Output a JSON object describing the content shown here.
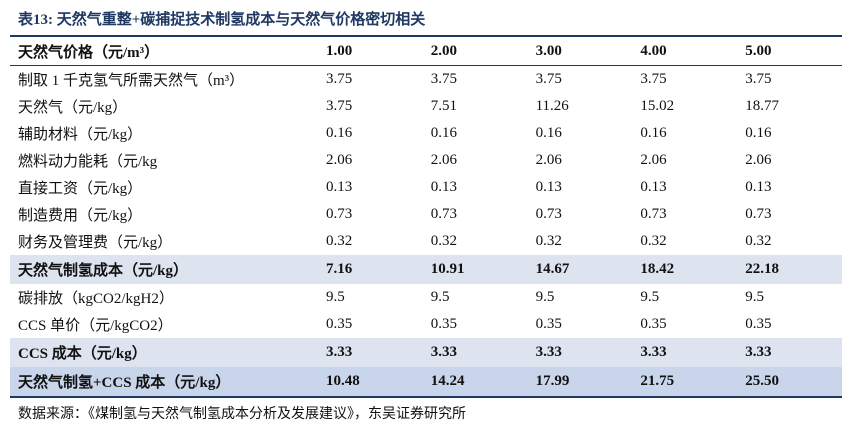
{
  "title": "表13:  天然气重整+碳捕捉技术制氢成本与天然气价格密切相关",
  "table": {
    "header": [
      "天然气价格（元/m³）",
      "1.00",
      "2.00",
      "3.00",
      "4.00",
      "5.00"
    ],
    "rows": [
      [
        "制取 1 千克氢气所需天然气（m³）",
        "3.75",
        "3.75",
        "3.75",
        "3.75",
        "3.75"
      ],
      [
        "天然气（元/kg）",
        "3.75",
        "7.51",
        "11.26",
        "15.02",
        "18.77"
      ],
      [
        "辅助材料（元/kg）",
        "0.16",
        "0.16",
        "0.16",
        "0.16",
        "0.16"
      ],
      [
        "燃料动力能耗（元/kg",
        "2.06",
        "2.06",
        "2.06",
        "2.06",
        "2.06"
      ],
      [
        "直接工资（元/kg）",
        "0.13",
        "0.13",
        "0.13",
        "0.13",
        "0.13"
      ],
      [
        "制造费用（元/kg）",
        "0.73",
        "0.73",
        "0.73",
        "0.73",
        "0.73"
      ],
      [
        "财务及管理费（元/kg）",
        "0.32",
        "0.32",
        "0.32",
        "0.32",
        "0.32"
      ],
      [
        "天然气制氢成本（元/kg）",
        "7.16",
        "10.91",
        "14.67",
        "18.42",
        "22.18"
      ],
      [
        "碳排放（kgCO2/kgH2）",
        "9.5",
        "9.5",
        "9.5",
        "9.5",
        "9.5"
      ],
      [
        "CCS 单价（元/kgCO2）",
        "0.35",
        "0.35",
        "0.35",
        "0.35",
        "0.35"
      ],
      [
        "CCS 成本（元/kg）",
        "3.33",
        "3.33",
        "3.33",
        "3.33",
        "3.33"
      ],
      [
        "天然气制氢+CCS 成本（元/kg）",
        "10.48",
        "14.24",
        "17.99",
        "21.75",
        "25.50"
      ]
    ]
  },
  "source": "数据来源：《煤制氢与天然气制氢成本分析及发展建议》，东吴证券研究所"
}
